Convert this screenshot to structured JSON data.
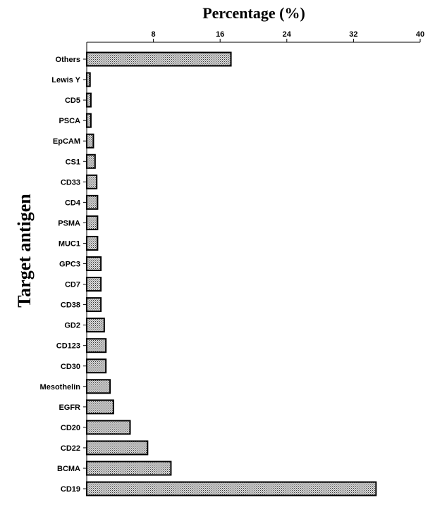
{
  "chart_data": {
    "type": "bar",
    "orientation": "horizontal",
    "xlabel": "Percentage (%)",
    "ylabel": "Target antigen",
    "xlim": [
      0,
      40
    ],
    "xticks": [
      8,
      16,
      24,
      32,
      40
    ],
    "x_axis_position": "top",
    "grid": false,
    "bar_fill": "crosshatch",
    "bar_color": "#7a7a7a",
    "bar_edge_color": "#000000",
    "categories": [
      "Others",
      "Lewis Y",
      "CD5",
      "PSCA",
      "EpCAM",
      "CS1",
      "CD33",
      "CD4",
      "PSMA",
      "MUC1",
      "GPC3",
      "CD7",
      "CD38",
      "GD2",
      "CD123",
      "CD30",
      "Mesothelin",
      "EGFR",
      "CD20",
      "CD22",
      "BCMA",
      "CD19"
    ],
    "values": [
      17.3,
      0.4,
      0.5,
      0.5,
      0.8,
      1.0,
      1.2,
      1.3,
      1.3,
      1.3,
      1.7,
      1.7,
      1.7,
      2.1,
      2.3,
      2.3,
      2.8,
      3.2,
      5.2,
      7.3,
      10.1,
      34.7
    ]
  }
}
